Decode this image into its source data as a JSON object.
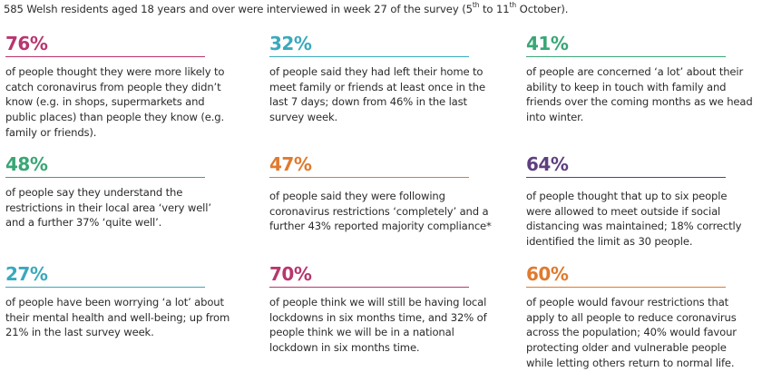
{
  "intro": {
    "before": "585 Welsh residents aged 18 years and over were interviewed in week 27 of the survey (5",
    "sup1": "th",
    "middle": " to 11",
    "sup2": "th",
    "after": " October)."
  },
  "stats": [
    {
      "percent": "76%",
      "color": "#b8366f",
      "text": "of people thought they were more likely to catch coronavirus from people they didn’t know (e.g. in shops, supermarkets and public places) than people they know (e.g. family or friends)."
    },
    {
      "percent": "32%",
      "color": "#3aa9bd",
      "text": "of people said they had left their home to meet family or friends at least once in the last 7 days; down from 46% in the last survey week."
    },
    {
      "percent": "41%",
      "color": "#3aa676",
      "text": "of people are concerned ‘a lot’ about their ability to keep in touch with family and friends over the coming months as we head into winter."
    },
    {
      "percent": "48%",
      "color": "#3aa676",
      "text": "of people say they understand the restrictions in their local area ‘very well’ and a further 37% ‘quite well’."
    },
    {
      "percent": "47%",
      "color": "#e07a2e",
      "text": "of people said they were following coronavirus restrictions ‘completely’ and a further 43% reported majority compliance*"
    },
    {
      "percent": "64%",
      "color": "#5f3f7e",
      "text": "of people thought that up to six people were allowed to meet outside if social distancing was maintained; 18% correctly identified the limit as 30 people."
    },
    {
      "percent": "27%",
      "color": "#3aa9bd",
      "text": "of people have been worrying ‘a lot’ about their mental health and well-being; up from 21% in the last survey week."
    },
    {
      "percent": "70%",
      "color": "#b8366f",
      "text": "of people think we will still be having local lockdowns in six months time, and 32% of people think we will be in a national lockdown in six months time."
    },
    {
      "percent": "60%",
      "color": "#e07a2e",
      "text": "of people would favour restrictions that apply to all people to reduce coronavirus across the population; 40% would favour protecting older and vulnerable people while letting others return to normal life."
    }
  ]
}
